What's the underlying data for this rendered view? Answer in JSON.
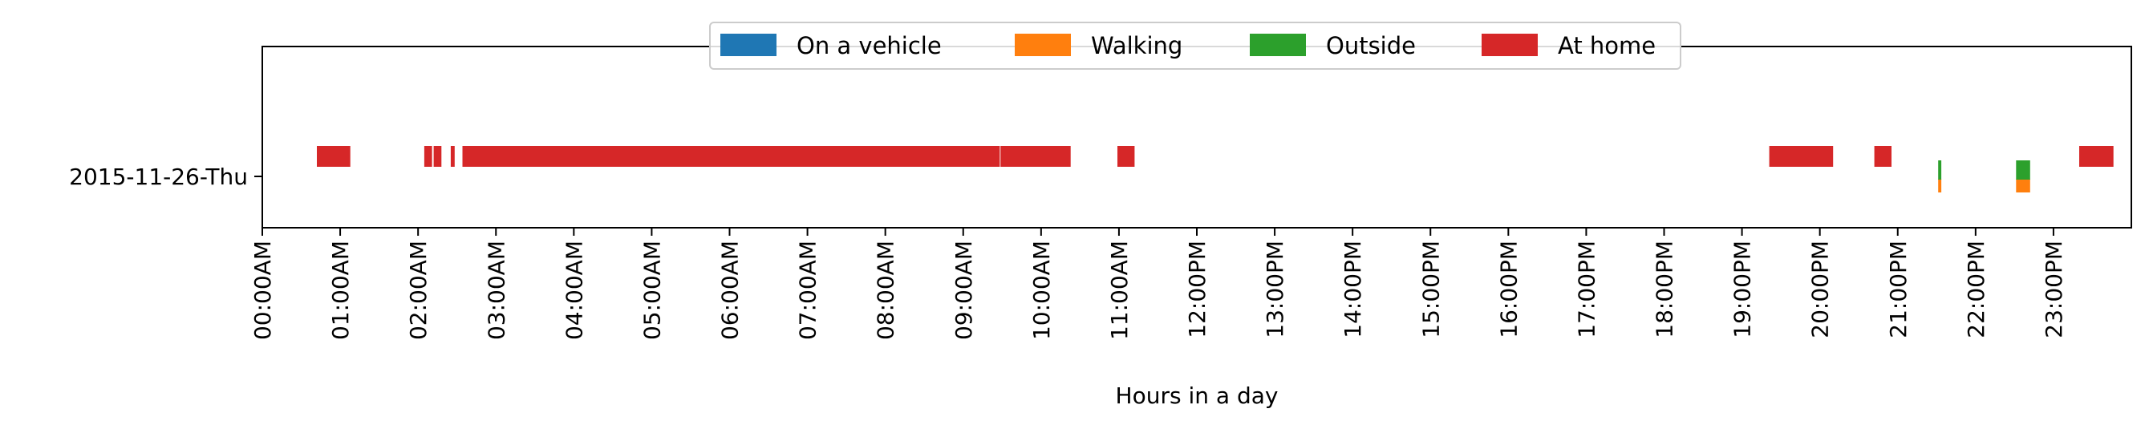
{
  "chart_data": {
    "type": "timeline",
    "xlabel": "Hours in a day",
    "xlim": [
      0,
      24
    ],
    "x_tick_labels": [
      "00:00AM",
      "01:00AM",
      "02:00AM",
      "03:00AM",
      "04:00AM",
      "05:00AM",
      "06:00AM",
      "07:00AM",
      "08:00AM",
      "09:00AM",
      "10:00AM",
      "11:00AM",
      "12:00PM",
      "13:00PM",
      "14:00PM",
      "15:00PM",
      "16:00PM",
      "17:00PM",
      "18:00PM",
      "19:00PM",
      "20:00PM",
      "21:00PM",
      "22:00PM",
      "23:00PM"
    ],
    "y_categories": [
      "2015-11-26-Thu"
    ],
    "legend_position": "top-center",
    "series": [
      {
        "name": "On a vehicle",
        "color": "#1f77b4",
        "intervals": []
      },
      {
        "name": "Walking",
        "color": "#ff7f0e",
        "intervals": [
          [
            21.52,
            21.56
          ],
          [
            22.52,
            22.7
          ]
        ]
      },
      {
        "name": "Outside",
        "color": "#2ca02c",
        "intervals": [
          [
            21.52,
            21.56
          ],
          [
            22.52,
            22.7
          ]
        ]
      },
      {
        "name": "At home",
        "color": "#d62728",
        "intervals": [
          [
            0.7,
            1.13
          ],
          [
            2.08,
            2.18
          ],
          [
            2.2,
            2.3
          ],
          [
            2.42,
            2.47
          ],
          [
            2.57,
            9.47
          ],
          [
            9.48,
            10.38
          ],
          [
            10.98,
            11.2
          ],
          [
            19.35,
            20.17
          ],
          [
            20.7,
            20.92
          ],
          [
            23.33,
            23.77
          ]
        ]
      }
    ]
  }
}
